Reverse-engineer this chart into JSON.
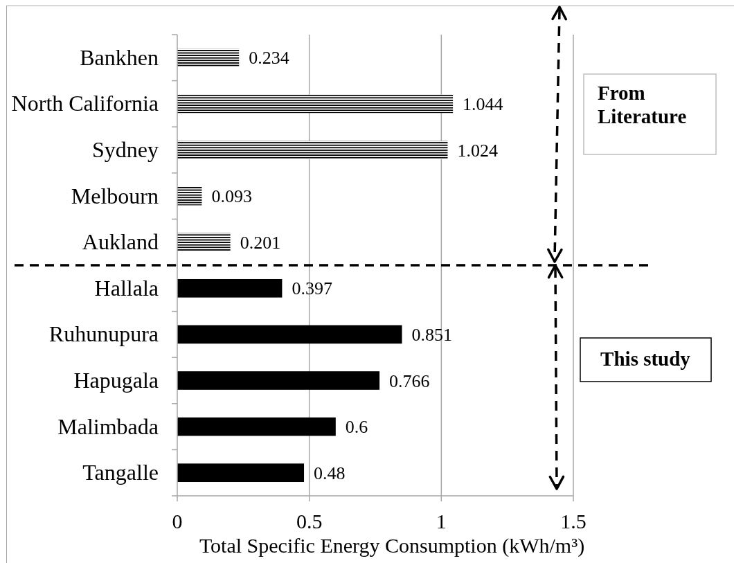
{
  "chart_data": {
    "type": "bar",
    "orientation": "horizontal",
    "xlabel": "Total Specific Energy Consumption (kWh/m³)",
    "categories": [
      "Bankhen",
      "North California",
      "Sydney",
      "Melbourn",
      "Aukland",
      "Hallala",
      "Ruhunupura",
      "Hapugala",
      "Malimbada",
      "Tangalle"
    ],
    "series": [
      {
        "name": "From Literature",
        "color": "#000000",
        "values": [
          0.234,
          1.044,
          1.024,
          0.093,
          0.201,
          null,
          null,
          null,
          null,
          null
        ]
      },
      {
        "name": "This study",
        "color": "#000000",
        "values": [
          null,
          null,
          null,
          null,
          null,
          0.397,
          0.851,
          0.766,
          0.6,
          0.48
        ]
      }
    ],
    "xlim": [
      0,
      1.5
    ],
    "xticks": [
      0,
      0.5,
      1,
      1.5
    ],
    "grid": "x",
    "data_labels": true
  }
}
